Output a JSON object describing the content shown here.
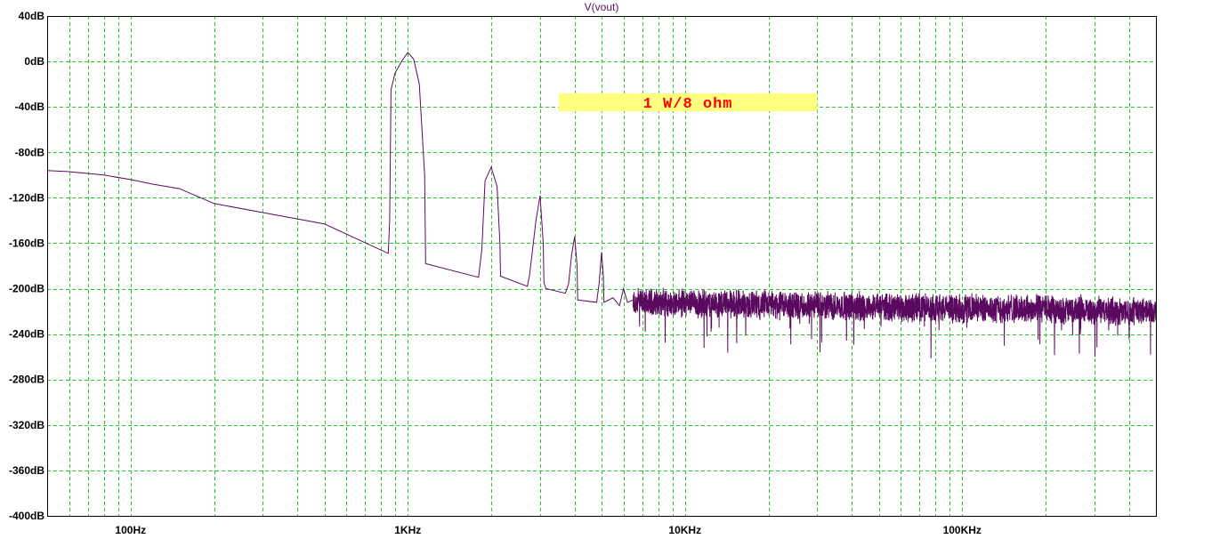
{
  "chart_data": {
    "type": "line",
    "title": "V(vout)",
    "xscale": "log",
    "xlim": [
      50,
      500000
    ],
    "ylim": [
      -400,
      40
    ],
    "grid": true,
    "yticks": [
      {
        "value": 40,
        "label": "40dB"
      },
      {
        "value": 0,
        "label": "0dB"
      },
      {
        "value": -40,
        "label": "-40dB"
      },
      {
        "value": -80,
        "label": "-80dB"
      },
      {
        "value": -120,
        "label": "-120dB"
      },
      {
        "value": -160,
        "label": "-160dB"
      },
      {
        "value": -200,
        "label": "-200dB"
      },
      {
        "value": -240,
        "label": "-240dB"
      },
      {
        "value": -280,
        "label": "-280dB"
      },
      {
        "value": -320,
        "label": "-320dB"
      },
      {
        "value": -360,
        "label": "-360dB"
      },
      {
        "value": -400,
        "label": "-400dB"
      }
    ],
    "xticks": [
      {
        "value": 100,
        "label": "100Hz"
      },
      {
        "value": 1000,
        "label": "1KHz"
      },
      {
        "value": 10000,
        "label": "10KHz"
      },
      {
        "value": 100000,
        "label": "100KHz"
      }
    ],
    "annotation": {
      "text": "1 W/8 ohm",
      "x_from": 3500,
      "x_to": 30000,
      "y_from": -28,
      "y_to": -44,
      "color_text": "#ff0000",
      "color_bg": "#ffff80"
    },
    "colors": {
      "grid": "#22cc22",
      "trace": "#5a0a5e",
      "frame": "#000000"
    },
    "series": [
      {
        "name": "V(vout)",
        "x": [
          50,
          60,
          80,
          100,
          120,
          150,
          200,
          300,
          500,
          850,
          860,
          870,
          900,
          950,
          1000,
          1050,
          1100,
          1150,
          1160,
          1800,
          1850,
          1900,
          2000,
          2100,
          2150,
          2160,
          2700,
          2750,
          2900,
          3000,
          3080,
          3100,
          3150,
          3700,
          3800,
          3900,
          4000,
          4080,
          4100,
          4800,
          4900,
          5000,
          5080,
          5100,
          5500,
          5800,
          6000,
          6200,
          6500
        ],
        "y": [
          -96,
          -97,
          -100,
          -104,
          -108,
          -112,
          -125,
          -133,
          -143,
          -169,
          -140,
          -25,
          -10,
          0,
          8,
          2,
          -20,
          -100,
          -178,
          -190,
          -165,
          -105,
          -93,
          -110,
          -160,
          -189,
          -198,
          -188,
          -140,
          -118,
          -160,
          -195,
          -200,
          -204,
          -196,
          -170,
          -154,
          -180,
          -210,
          -212,
          -195,
          -168,
          -190,
          -212,
          -208,
          -215,
          -200,
          -212,
          -210
        ]
      }
    ]
  }
}
